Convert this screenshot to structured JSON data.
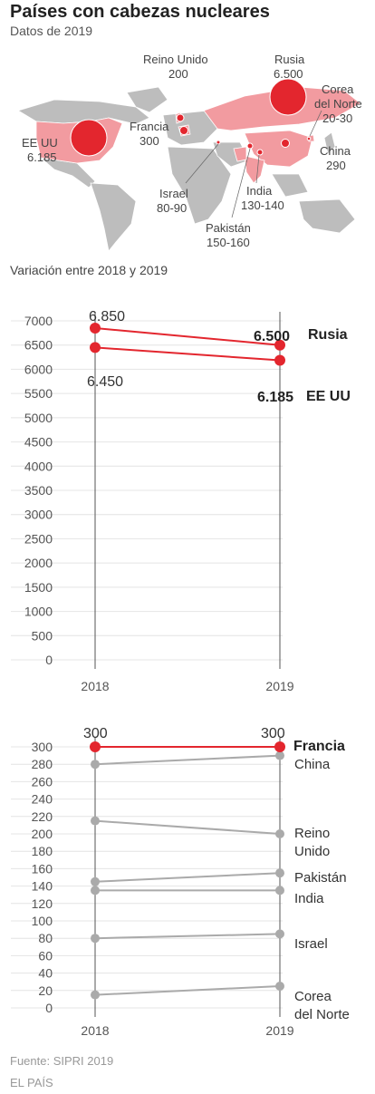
{
  "header": {
    "title": "Países con cabezas nucleares",
    "subtitle": "Datos de 2019",
    "section_title": "Variación entre 2018 y 2019"
  },
  "footer": {
    "source": "Fuente: SIPRI 2019",
    "brand": "EL PAÍS"
  },
  "colors": {
    "highlight": "#e3262e",
    "grey": "#aaaaaa",
    "land": "#bdbdbd",
    "land_highlight": "#f29ba0"
  },
  "map_labels": [
    {
      "name": "Rusia",
      "value": "6.500"
    },
    {
      "name": "Reino Unido",
      "value": "200"
    },
    {
      "name": "Corea del Norte",
      "value": "20-30"
    },
    {
      "name": "Francia",
      "value": "300"
    },
    {
      "name": "EE UU",
      "value": "6.185"
    },
    {
      "name": "China",
      "value": "290"
    },
    {
      "name": "Israel",
      "value": "80-90"
    },
    {
      "name": "India",
      "value": "130-140"
    },
    {
      "name": "Pakistán",
      "value": "150-160"
    }
  ],
  "chart_data": [
    {
      "type": "line",
      "x": [
        "2018",
        "2019"
      ],
      "ylim": [
        0,
        7000
      ],
      "yticks": [
        0,
        500,
        1000,
        1500,
        2000,
        2500,
        3000,
        3500,
        4000,
        4500,
        5000,
        5500,
        6000,
        6500,
        7000
      ],
      "series": [
        {
          "name": "Rusia",
          "values": [
            6850,
            6500
          ],
          "highlight": true,
          "label_2018": "6.850",
          "label_2019": "6.500"
        },
        {
          "name": "EE UU",
          "values": [
            6450,
            6185
          ],
          "highlight": true,
          "label_2018": "6.450",
          "label_2019": "6.185"
        }
      ]
    },
    {
      "type": "line",
      "x": [
        "2018",
        "2019"
      ],
      "ylim": [
        0,
        300
      ],
      "yticks": [
        0,
        20,
        40,
        60,
        80,
        100,
        120,
        140,
        160,
        180,
        200,
        220,
        240,
        260,
        280,
        300
      ],
      "series": [
        {
          "name": "Francia",
          "values": [
            300,
            300
          ],
          "highlight": true,
          "label_2018": "300",
          "label_2019": "300"
        },
        {
          "name": "China",
          "values": [
            280,
            290
          ],
          "highlight": false
        },
        {
          "name": "Reino Unido",
          "values": [
            215,
            200
          ],
          "highlight": false
        },
        {
          "name": "Pakistán",
          "values": [
            145,
            155
          ],
          "highlight": false
        },
        {
          "name": "India",
          "values": [
            135,
            135
          ],
          "highlight": false
        },
        {
          "name": "Israel",
          "values": [
            80,
            85
          ],
          "highlight": false
        },
        {
          "name": "Corea del Norte",
          "values": [
            15,
            25
          ],
          "highlight": false
        }
      ]
    }
  ]
}
